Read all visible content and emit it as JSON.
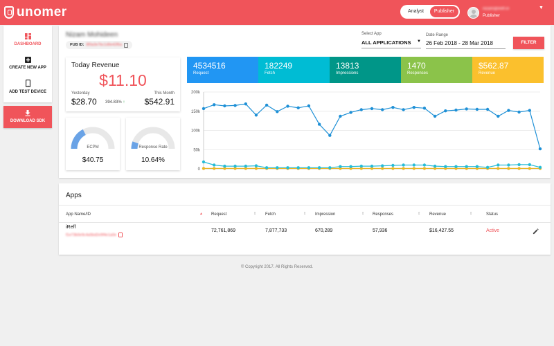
{
  "header": {
    "logo": "unomer",
    "roles": [
      "Analyst",
      "Publisher"
    ],
    "active_role": "Publisher",
    "user_email": "nizam@ireff.in",
    "user_role": "Publisher"
  },
  "sidebar": {
    "items": [
      {
        "label": "DASHBOARD",
        "icon": "dashboard-icon"
      },
      {
        "label": "CREATE NEW APP",
        "icon": "plus-icon"
      },
      {
        "label": "ADD TEST DEVICE",
        "icon": "phone-icon"
      }
    ],
    "download_sdk": "DOWNLOAD SDK"
  },
  "publisher": {
    "name": "Nizam Mohideen",
    "pub_id_label": "PUB ID:",
    "pub_id": "8f0a3e7bc1d9e42f6a"
  },
  "filters": {
    "app_label": "Select App",
    "app_value": "ALL APPLICATIONS",
    "date_label": "Date Range",
    "date_value": "26 Feb 2018 - 28 Mar 2018",
    "button": "FILTER"
  },
  "revenue": {
    "title": "Today Revenue",
    "amount": "$11.10",
    "yesterday_label": "Yesterday",
    "yesterday_value": "$28.70",
    "change": "394.83%",
    "month_label": "This Month",
    "month_value": "$542.91"
  },
  "gauges": [
    {
      "label": "ECPM",
      "value": "$40.75",
      "fill": 0.35
    },
    {
      "label": "Response Rate",
      "value": "10.64%",
      "fill": 0.11
    }
  ],
  "metrics": [
    {
      "value": "4534516",
      "label": "Request",
      "color": "#2196f3"
    },
    {
      "value": "182249",
      "label": "Fetch",
      "color": "#00bcd4"
    },
    {
      "value": "13813",
      "label": "Impressions",
      "color": "#009688"
    },
    {
      "value": "1470",
      "label": "Responses",
      "color": "#8bc34a"
    },
    {
      "value": "$562.87",
      "label": "Revenue",
      "color": "#fbc02d"
    }
  ],
  "chart_data": {
    "type": "line",
    "ylim": [
      0,
      200000
    ],
    "yticks": [
      "200k",
      "150k",
      "100k",
      "50k",
      "0"
    ],
    "grid": true,
    "series": [
      {
        "color": "#1e90d6",
        "values": [
          157000,
          167000,
          164000,
          165000,
          169000,
          140000,
          166000,
          149000,
          163000,
          159000,
          164000,
          116000,
          87000,
          137000,
          147000,
          154000,
          157000,
          154000,
          160000,
          154000,
          160000,
          158000,
          137000,
          151000,
          153000,
          156000,
          155000,
          155000,
          137000,
          152000,
          148000,
          152000,
          52000
        ]
      },
      {
        "color": "#26bcd7",
        "values": [
          18000,
          10000,
          7000,
          7000,
          7000,
          8000,
          3000,
          3000,
          3000,
          3000,
          3000,
          3000,
          3000,
          6000,
          6000,
          7000,
          7000,
          8000,
          9000,
          10000,
          10000,
          10000,
          7000,
          6000,
          6000,
          6000,
          6000,
          4000,
          10000,
          10000,
          11000,
          11000,
          4000
        ]
      },
      {
        "color": "#e9b628",
        "values": [
          1000,
          1000,
          1000,
          1000,
          1000,
          1000,
          1000,
          1000,
          1000,
          1000,
          1000,
          1000,
          1000,
          1000,
          1000,
          1000,
          1000,
          1000,
          1000,
          1000,
          1000,
          1000,
          1000,
          1000,
          1000,
          1000,
          1000,
          1000,
          1000,
          1000,
          1000,
          1000,
          1000
        ]
      }
    ]
  },
  "apps": {
    "title": "Apps",
    "columns": [
      "App Name/ID",
      "Request",
      "Fetch",
      "Impression",
      "Responses",
      "Revenue",
      "Status"
    ],
    "rows": [
      {
        "name": "iReff",
        "id": "f1e73b0e9c4a5bd2e9f4e1a0e",
        "request": "72,761,869",
        "fetch": "7,877,733",
        "impression": "670,289",
        "responses": "57,936",
        "revenue": "$16,427.55",
        "status": "Active"
      }
    ]
  },
  "footer": "© Copyright 2017. All Rights Reserved."
}
